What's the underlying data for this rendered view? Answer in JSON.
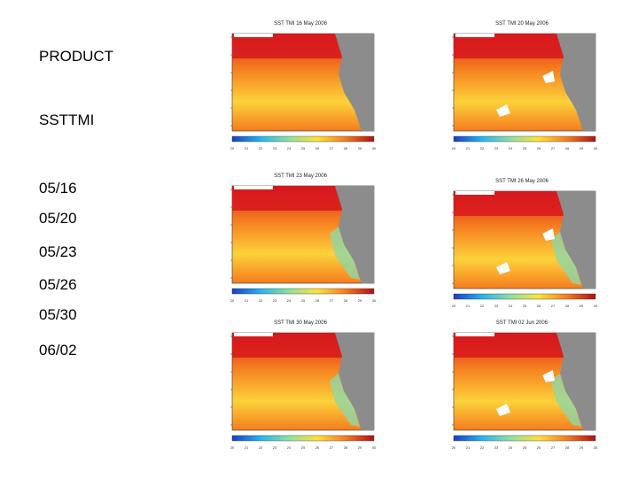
{
  "labels": {
    "product": "PRODUCT",
    "source": "SSTTMI",
    "dates": [
      "05/16",
      "05/20",
      "05/23",
      "05/26",
      "05/30",
      "06/02"
    ]
  },
  "panels": [
    {
      "title": "SST TMI 16 May 2006"
    },
    {
      "title": "SST TMI 20 May 2006"
    },
    {
      "title": "SST TMI 23 May 2006"
    },
    {
      "title": "SST TMI 26 May 2006"
    },
    {
      "title": "SST TMI 30 May 2006"
    },
    {
      "title": "SST TMI 02 Jun 2006"
    }
  ],
  "colorbar": {
    "ticks": [
      "20",
      "21",
      "22",
      "23",
      "24",
      "25",
      "26",
      "27",
      "28",
      "29",
      "30"
    ]
  },
  "colors": {
    "land": "#8c8c8c",
    "warm": "#d7191c",
    "mid": "#f57c1f",
    "cool": "#fdd23a",
    "cold": "#8fd7a8"
  }
}
